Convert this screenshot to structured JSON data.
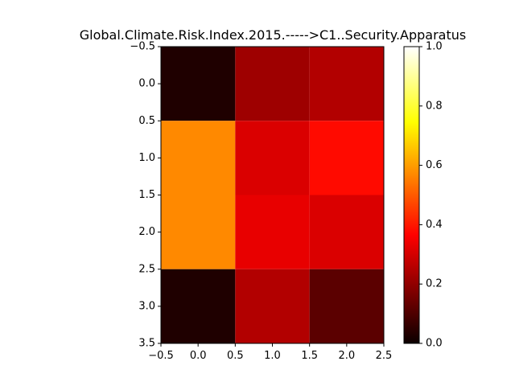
{
  "chart_data": {
    "type": "heatmap",
    "title": "Global.Climate.Risk.Index.2015.----->C1..Security.Apparatus",
    "colormap": "hot",
    "vmin": 0,
    "vmax": 1,
    "values": [
      [
        0.03,
        0.22,
        0.25
      ],
      [
        0.57,
        0.31,
        0.38
      ],
      [
        0.57,
        0.33,
        0.31
      ],
      [
        0.03,
        0.25,
        0.12
      ]
    ],
    "xlim": [
      -0.5,
      2.5
    ],
    "ylim": [
      3.5,
      -0.5
    ],
    "x_ticks": [
      "−0.5",
      "0.0",
      "0.5",
      "1.0",
      "1.5",
      "2.0",
      "2.5"
    ],
    "y_ticks": [
      "−0.5",
      "0.0",
      "0.5",
      "1.0",
      "1.5",
      "2.0",
      "2.5",
      "3.0",
      "3.5"
    ],
    "colorbar_ticks": [
      "0.0",
      "0.2",
      "0.4",
      "0.6",
      "0.8",
      "1.0"
    ]
  }
}
